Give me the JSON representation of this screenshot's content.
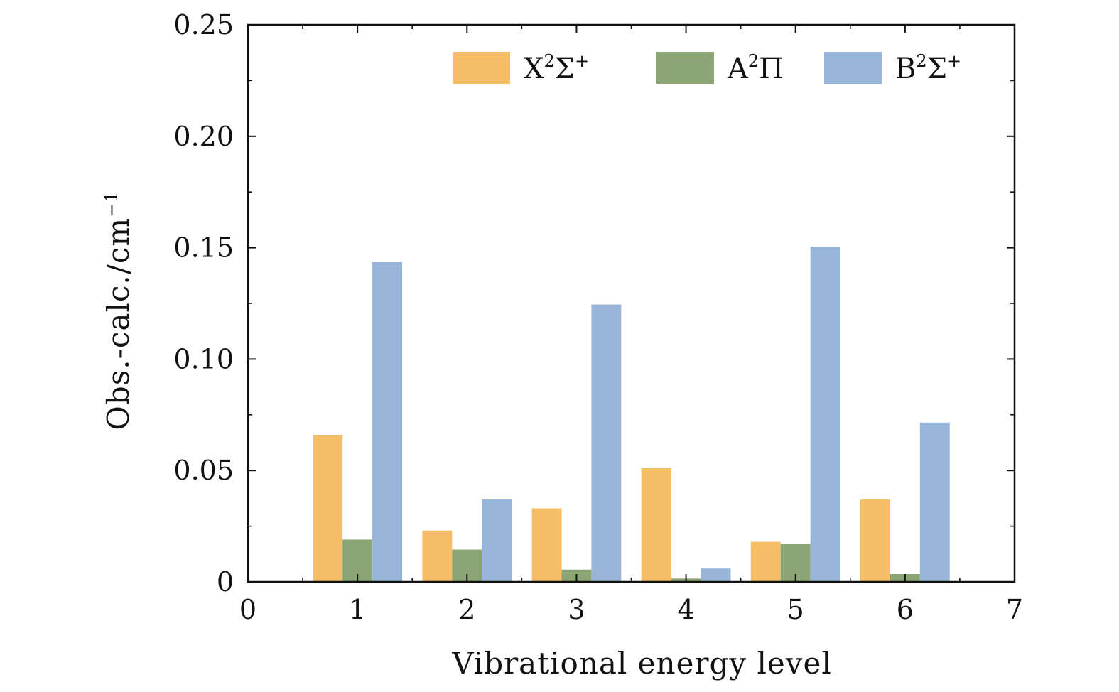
{
  "chart_data": {
    "type": "bar",
    "title": "",
    "xlabel": "Vibrational energy level",
    "ylabel_main": "Obs.-calc./cm",
    "ylabel_sup": "−1",
    "categories": [
      "1",
      "2",
      "3",
      "4",
      "5",
      "6"
    ],
    "x_positions": [
      1,
      2,
      3,
      4,
      5,
      6
    ],
    "xlim": [
      0,
      7
    ],
    "ylim": [
      0,
      0.25
    ],
    "x_ticks": [
      0,
      1,
      2,
      3,
      4,
      5,
      6,
      7
    ],
    "x_tick_labels": [
      "0",
      "1",
      "2",
      "3",
      "4",
      "5",
      "6",
      "7"
    ],
    "y_ticks": [
      0,
      0.05,
      0.1,
      0.15,
      0.2,
      0.25
    ],
    "y_tick_labels": [
      "0",
      "0.05",
      "0.10",
      "0.15",
      "0.20",
      "0.25"
    ],
    "grid": false,
    "legend_position": "top-right",
    "series": [
      {
        "key": "X",
        "base": "X",
        "sup": "2",
        "tail": "Σ",
        "tail_sup": "+",
        "color": "#F5BE67",
        "values": [
          0.066,
          0.023,
          0.033,
          0.051,
          0.018,
          0.037
        ]
      },
      {
        "key": "A",
        "base": "A",
        "sup": "2",
        "tail": "Π",
        "tail_sup": "",
        "color": "#8BA674",
        "values": [
          0.019,
          0.0145,
          0.0055,
          0.0015,
          0.017,
          0.0035
        ]
      },
      {
        "key": "B",
        "base": "B",
        "sup": "2",
        "tail": "Σ",
        "tail_sup": "+",
        "color": "#96B5D8",
        "values": [
          0.1435,
          0.037,
          0.1245,
          0.006,
          0.1505,
          0.0715
        ]
      }
    ]
  }
}
